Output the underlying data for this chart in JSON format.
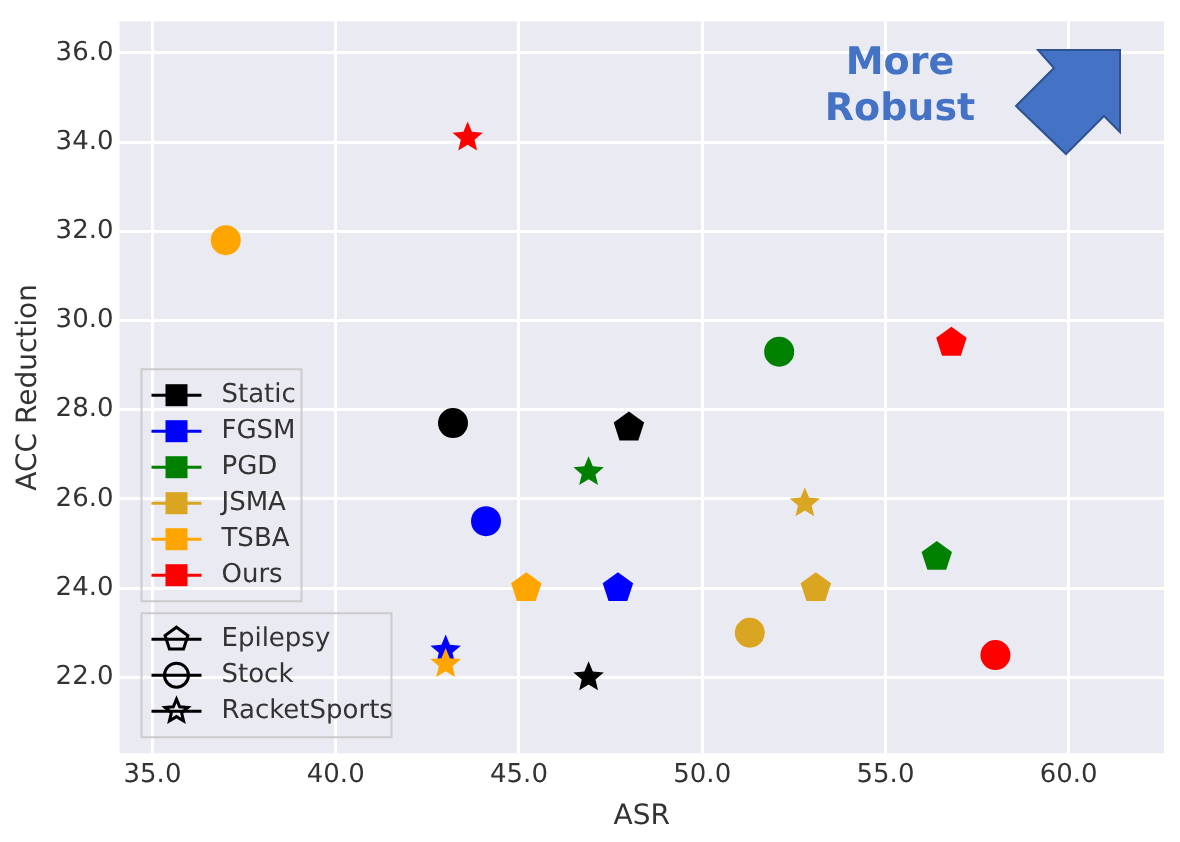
{
  "chart_data": {
    "type": "scatter",
    "xlabel": "ASR",
    "ylabel": "ACC Reduction",
    "xlim": [
      34.1,
      62.6
    ],
    "ylim": [
      20.3,
      36.7
    ],
    "xticks": [
      {
        "value": 35,
        "label": "35.0"
      },
      {
        "value": 40,
        "label": "40.0"
      },
      {
        "value": 45,
        "label": "45.0"
      },
      {
        "value": 50,
        "label": "50.0"
      },
      {
        "value": 55,
        "label": "55.0"
      },
      {
        "value": 60,
        "label": "60.0"
      }
    ],
    "yticks": [
      {
        "value": 22,
        "label": "22.0"
      },
      {
        "value": 24,
        "label": "24.0"
      },
      {
        "value": 26,
        "label": "26.0"
      },
      {
        "value": 28,
        "label": "28.0"
      },
      {
        "value": 30,
        "label": "30.0"
      },
      {
        "value": 32,
        "label": "32.0"
      },
      {
        "value": 34,
        "label": "34.0"
      },
      {
        "value": 36,
        "label": "36.0"
      }
    ],
    "grid": true,
    "legend": "bottom left",
    "series": [
      {
        "name": "Static",
        "color": "#000000",
        "x": [
          48.0,
          43.2,
          46.9
        ],
        "values": [
          27.6,
          27.7,
          22.0
        ],
        "marker": [
          "pentagon",
          "circle",
          "star"
        ]
      },
      {
        "name": "FGSM",
        "color": "#0000ff",
        "x": [
          47.7,
          44.1,
          43.0
        ],
        "values": [
          24.0,
          25.5,
          22.6
        ],
        "marker": [
          "pentagon",
          "circle",
          "star"
        ]
      },
      {
        "name": "PGD",
        "color": "#008000",
        "x": [
          56.4,
          52.1,
          46.9
        ],
        "values": [
          24.7,
          29.3,
          26.6
        ],
        "marker": [
          "pentagon",
          "circle",
          "star"
        ]
      },
      {
        "name": "JSMA",
        "color": "#daa520",
        "x": [
          53.1,
          51.3,
          52.8
        ],
        "values": [
          24.0,
          23.0,
          25.9
        ],
        "marker": [
          "pentagon",
          "circle",
          "star"
        ]
      },
      {
        "name": "TSBA",
        "color": "#ffa500",
        "x": [
          45.2,
          37.0,
          43.0
        ],
        "values": [
          24.0,
          31.8,
          22.3
        ],
        "marker": [
          "pentagon",
          "circle",
          "star"
        ]
      },
      {
        "name": "Ours",
        "color": "#ff0000",
        "x": [
          56.8,
          58.0,
          43.6
        ],
        "values": [
          29.5,
          22.5,
          34.1
        ],
        "marker": [
          "pentagon",
          "circle",
          "star"
        ]
      },
      {
        "name": "Epilepsy",
        "color": "#000000",
        "marker": "pentagon"
      },
      {
        "name": "Stock",
        "color": "#000000",
        "marker": "circle"
      },
      {
        "name": "RacketSports",
        "color": "#000000",
        "marker": "star"
      }
    ],
    "annotations": [
      "More Robust"
    ]
  }
}
